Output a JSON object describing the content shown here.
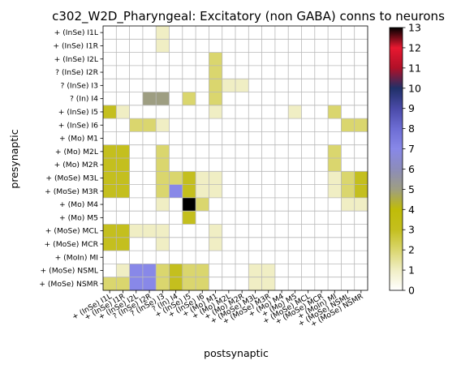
{
  "chart_data": {
    "type": "heatmap",
    "title": "c302_W2D_Pharyngeal: Excitatory (non GABA) conns to neurons",
    "xlabel": "postsynaptic",
    "ylabel": "presynaptic",
    "row_labels": [
      "+ (InSe) I1L",
      "+ (InSe) I1R",
      "+ (InSe) I2L",
      "? (InSe) I2R",
      "? (InSe) I3",
      "? (In) I4",
      "+ (InSe) I5",
      "+ (InSe) I6",
      "+ (Mo) M1",
      "+ (Mo) M2L",
      "+ (Mo) M2R",
      "+ (MoSe) M3L",
      "+ (MoSe) M3R",
      "+ (Mo) M4",
      "+ (Mo) M5",
      "+ (MoSe) MCL",
      "+ (MoSe) MCR",
      "+ (MoIn) MI",
      "+ (MoSe) NSML",
      "+ (MoSe) NSMR"
    ],
    "col_labels": [
      "+ (InSe) I1L",
      "+ (InSe) I1R",
      "+ (InSe) I2L",
      "? (InSe) I2R",
      "? (InSe) I3",
      "? (In) I4",
      "+ (InSe) I5",
      "+ (InSe) I6",
      "+ (Mo) M1",
      "+ (Mo) M2L",
      "+ (Mo) M2R",
      "+ (MoSe) M3L",
      "+ (MoSe) M3R",
      "+ (Mo) M4",
      "+ (Mo) M5",
      "+ (MoSe) MCL",
      "+ (MoSe) MCR",
      "+ (MoIn) MI",
      "+ (MoSe) NSML",
      "+ (MoSe) NSMR"
    ],
    "values": [
      [
        0,
        0,
        0,
        0,
        1,
        0,
        0,
        0,
        0,
        0,
        0,
        0,
        0,
        0,
        0,
        0,
        0,
        0,
        0,
        0
      ],
      [
        0,
        0,
        0,
        0,
        1,
        0,
        0,
        0,
        0,
        0,
        0,
        0,
        0,
        0,
        0,
        0,
        0,
        0,
        0,
        0
      ],
      [
        0,
        0,
        0,
        0,
        0,
        0,
        0,
        0,
        2,
        0,
        0,
        0,
        0,
        0,
        0,
        0,
        0,
        0,
        0,
        0
      ],
      [
        0,
        0,
        0,
        0,
        0,
        0,
        0,
        0,
        2,
        0,
        0,
        0,
        0,
        0,
        0,
        0,
        0,
        0,
        0,
        0
      ],
      [
        0,
        0,
        0,
        0,
        0,
        0,
        0,
        0,
        2,
        1,
        1,
        0,
        0,
        0,
        0,
        0,
        0,
        0,
        0,
        0
      ],
      [
        0,
        0,
        0,
        5,
        5,
        0,
        2,
        0,
        2,
        0,
        0,
        0,
        0,
        0,
        0,
        0,
        0,
        0,
        0,
        0
      ],
      [
        3,
        1,
        0,
        0,
        0,
        0,
        0,
        0,
        1,
        0,
        0,
        0,
        0,
        0,
        1,
        0,
        0,
        2,
        0,
        0
      ],
      [
        0,
        0,
        2,
        2,
        1,
        0,
        0,
        0,
        0,
        0,
        0,
        0,
        0,
        0,
        0,
        0,
        0,
        0,
        2,
        2
      ],
      [
        0,
        0,
        0,
        0,
        0,
        0,
        0,
        0,
        0,
        0,
        0,
        0,
        0,
        0,
        0,
        0,
        0,
        0,
        0,
        0
      ],
      [
        3,
        3,
        0,
        0,
        2,
        0,
        0,
        0,
        0,
        0,
        0,
        0,
        0,
        0,
        0,
        0,
        0,
        2,
        0,
        0
      ],
      [
        3,
        3,
        0,
        0,
        2,
        0,
        0,
        0,
        0,
        0,
        0,
        0,
        0,
        0,
        0,
        0,
        0,
        2,
        0,
        0
      ],
      [
        3,
        3,
        0,
        0,
        2,
        2,
        3,
        1,
        1,
        0,
        0,
        0,
        0,
        0,
        0,
        0,
        0,
        1,
        2,
        3
      ],
      [
        3,
        3,
        0,
        0,
        2,
        7,
        3,
        1,
        1,
        0,
        0,
        0,
        0,
        0,
        0,
        0,
        0,
        1,
        2,
        3
      ],
      [
        0,
        0,
        0,
        0,
        1,
        0,
        13,
        2,
        0,
        0,
        0,
        0,
        0,
        0,
        0,
        0,
        0,
        0,
        1,
        1
      ],
      [
        0,
        0,
        0,
        0,
        0,
        0,
        3,
        0,
        0,
        0,
        0,
        0,
        0,
        0,
        0,
        0,
        0,
        0,
        0,
        0
      ],
      [
        3,
        3,
        1,
        1,
        1,
        0,
        0,
        0,
        1,
        0,
        0,
        0,
        0,
        0,
        0,
        0,
        0,
        0,
        0,
        0
      ],
      [
        3,
        3,
        0,
        0,
        1,
        0,
        0,
        0,
        1,
        0,
        0,
        0,
        0,
        0,
        0,
        0,
        0,
        0,
        0,
        0
      ],
      [
        0,
        0,
        0,
        0,
        0,
        0,
        0,
        0,
        0,
        0,
        0,
        0,
        0,
        0,
        0,
        0,
        0,
        0,
        0,
        0
      ],
      [
        0,
        1,
        7,
        7,
        2,
        3,
        2,
        2,
        0,
        0,
        0,
        1,
        1,
        0,
        0,
        0,
        0,
        0,
        0,
        0
      ],
      [
        2,
        2,
        7,
        7,
        2,
        3,
        2,
        2,
        0,
        0,
        0,
        1,
        1,
        0,
        0,
        0,
        0,
        0,
        0,
        0
      ]
    ],
    "colorbar": {
      "min": 0,
      "max": 13,
      "ticks": [
        "0",
        "1",
        "2",
        "3",
        "4",
        "5",
        "6",
        "7",
        "8",
        "9",
        "10",
        "11",
        "12",
        "13"
      ]
    },
    "grid": true,
    "colormap": "gist_stern_r"
  }
}
